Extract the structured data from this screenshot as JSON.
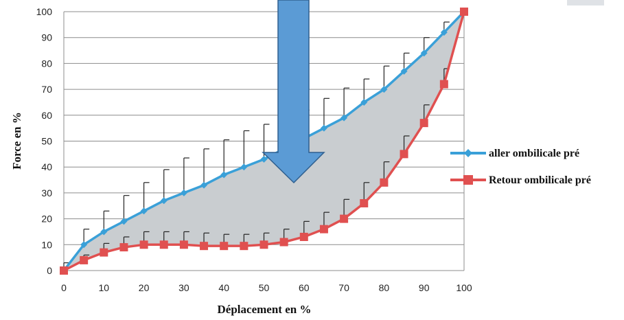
{
  "chart_data": {
    "type": "line",
    "title": "",
    "xlabel": "Déplacement en %",
    "ylabel": "Force en %",
    "xlim": [
      0,
      100
    ],
    "ylim": [
      0,
      100
    ],
    "x_ticks": [
      0,
      10,
      20,
      30,
      40,
      50,
      60,
      70,
      80,
      90,
      100
    ],
    "y_ticks": [
      0,
      10,
      20,
      30,
      40,
      50,
      60,
      70,
      80,
      90,
      100
    ],
    "grid": "horizontal",
    "legend_position": "right",
    "series": [
      {
        "name": "aller ombilicale pré",
        "color": "#3aa0d8",
        "marker": "diamond",
        "x": [
          0,
          5,
          10,
          15,
          20,
          25,
          30,
          35,
          40,
          45,
          50,
          55,
          60,
          65,
          70,
          75,
          80,
          85,
          90,
          95,
          100
        ],
        "y": [
          0,
          10,
          15,
          19,
          23,
          27,
          30,
          33,
          37,
          40,
          43,
          47,
          51,
          55,
          59,
          65,
          70,
          77,
          84,
          92,
          100
        ],
        "error_upper": [
          3,
          16,
          23,
          29,
          34,
          39,
          43.5,
          47,
          50.5,
          54,
          56.5,
          59,
          62,
          66.5,
          70.5,
          74,
          79,
          84,
          90,
          96,
          100
        ]
      },
      {
        "name": "Retour ombilicale pré",
        "color": "#e05050",
        "marker": "square",
        "x": [
          0,
          5,
          10,
          15,
          20,
          25,
          30,
          35,
          40,
          45,
          50,
          55,
          60,
          65,
          70,
          75,
          80,
          85,
          90,
          95,
          100
        ],
        "y": [
          0,
          4,
          7,
          9,
          10,
          10,
          10,
          9.5,
          9.5,
          9.5,
          10,
          11,
          13,
          16,
          20,
          26,
          34,
          45,
          57,
          72,
          100
        ],
        "error_upper": [
          0,
          6,
          10.5,
          13,
          15,
          15,
          15,
          14.5,
          14,
          14,
          14.5,
          16,
          19,
          22.5,
          27.5,
          34,
          42,
          52,
          64,
          78,
          100
        ]
      }
    ],
    "fill_between": {
      "color": "#c9cdd0"
    },
    "overlay_arrow": {
      "direction": "down",
      "color": "#5b9bd5"
    }
  }
}
